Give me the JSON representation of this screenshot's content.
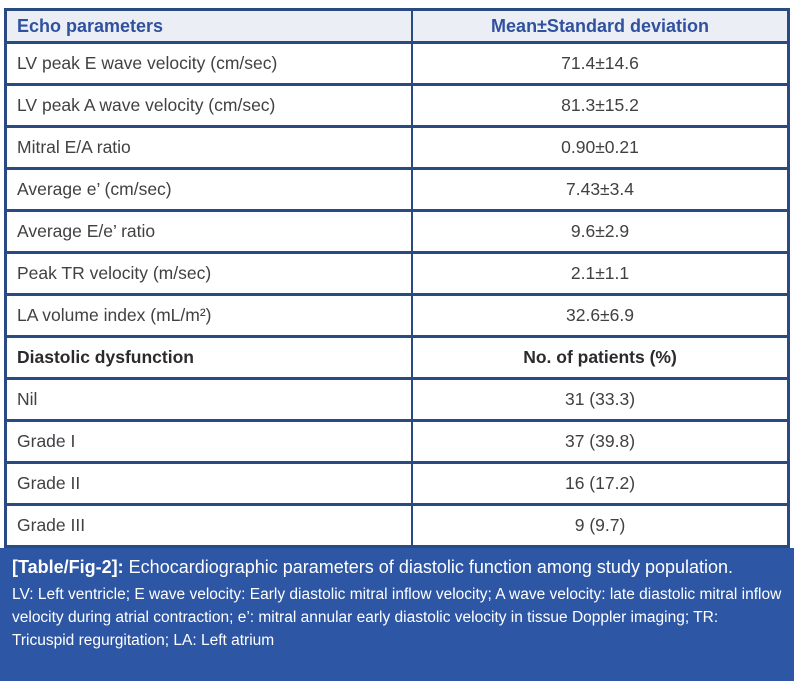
{
  "table": {
    "header": {
      "col1": "Echo parameters",
      "col2": "Mean±Standard deviation"
    },
    "echo_rows": [
      {
        "param": "LV peak E wave velocity (cm/sec)",
        "value": "71.4±14.6"
      },
      {
        "param": "LV peak A wave velocity (cm/sec)",
        "value": "81.3±15.2"
      },
      {
        "param": "Mitral E/A ratio",
        "value": "0.90±0.21"
      },
      {
        "param": "Average e’ (cm/sec)",
        "value": "7.43±3.4"
      },
      {
        "param": "Average E/e’ ratio",
        "value": "9.6±2.9"
      },
      {
        "param": "Peak TR velocity (m/sec)",
        "value": "2.1±1.1"
      },
      {
        "param": "LA volume index (mL/m²)",
        "value": "32.6±6.9"
      }
    ],
    "section_header": {
      "col1": "Diastolic dysfunction",
      "col2": "No. of patients (%)"
    },
    "dd_rows": [
      {
        "param": "Nil",
        "value": "31 (33.3)"
      },
      {
        "param": "Grade I",
        "value": "37 (39.8)"
      },
      {
        "param": "Grade II",
        "value": "16 (17.2)"
      },
      {
        "param": "Grade III",
        "value": "9 (9.7)"
      }
    ]
  },
  "caption": {
    "label": "[Table/Fig-2]:",
    "title": "Echocardiographic parameters of diastolic function among study population.",
    "footnote": "LV: Left ventricle; E wave velocity: Early diastolic mitral inflow velocity; A wave velocity: late diastolic mitral inflow velocity during atrial contraction; e’: mitral annular early diastolic velocity in tissue Doppler imaging; TR: Tricuspid regurgitation; LA: Left atrium"
  },
  "colors": {
    "border": "#294b82",
    "header_bg": "#eceef6",
    "header_text": "#2f519e",
    "body_text": "#414144",
    "caption_bg": "#2d56a4",
    "caption_text": "#ffffff"
  }
}
